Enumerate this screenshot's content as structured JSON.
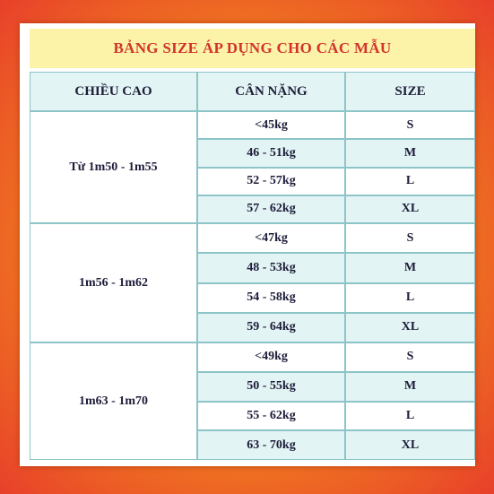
{
  "title": "BẢNG SIZE ÁP DỤNG CHO CÁC MẪU",
  "table": {
    "header": [
      "CHIỀU CAO",
      "CÂN NẶNG",
      "SIZE"
    ],
    "groups": [
      {
        "height": "Từ 1m50 - 1m55",
        "rows": [
          [
            "<45kg",
            "S"
          ],
          [
            "46 - 51kg",
            "M"
          ],
          [
            "52 - 57kg",
            "L"
          ],
          [
            "57 - 62kg",
            "XL"
          ]
        ]
      },
      {
        "height": "1m56 - 1m62",
        "rows": [
          [
            "<47kg",
            "S"
          ],
          [
            "48 - 53kg",
            "M"
          ],
          [
            "54 - 58kg",
            "L"
          ],
          [
            "59 - 64kg",
            "XL"
          ]
        ]
      },
      {
        "height": "1m63 - 1m70",
        "rows": [
          [
            "<49kg",
            "S"
          ],
          [
            "50 - 55kg",
            "M"
          ],
          [
            "55 - 62kg",
            "L"
          ],
          [
            "63 - 70kg",
            "XL"
          ]
        ]
      }
    ]
  }
}
